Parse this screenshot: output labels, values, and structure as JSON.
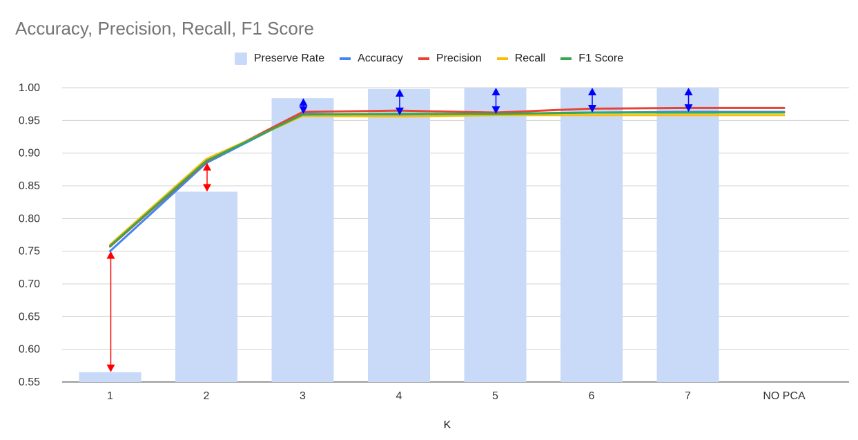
{
  "chart_data": {
    "type": "bar+line",
    "title": "Accuracy, Precision, Recall, F1 Score",
    "xlabel": "K",
    "ylabel": "",
    "categories": [
      "1",
      "2",
      "3",
      "4",
      "5",
      "6",
      "7",
      "NO PCA"
    ],
    "ylim": [
      0.55,
      1.0
    ],
    "yticks": [
      "0.55",
      "0.60",
      "0.65",
      "0.70",
      "0.75",
      "0.80",
      "0.85",
      "0.90",
      "0.95",
      "1.00"
    ],
    "grid": true,
    "legend_position": "top",
    "bars": {
      "name": "Preserve Rate",
      "color": "#c9daf8",
      "values": [
        0.565,
        0.841,
        0.984,
        0.998,
        1.0,
        1.0,
        1.0,
        null
      ]
    },
    "series": [
      {
        "name": "Accuracy",
        "color": "#4285f4",
        "values": [
          0.75,
          0.885,
          0.96,
          0.958,
          0.96,
          0.962,
          0.963,
          0.963
        ]
      },
      {
        "name": "Precision",
        "color": "#ea4335",
        "values": [
          0.757,
          0.887,
          0.963,
          0.965,
          0.962,
          0.968,
          0.969,
          0.969
        ]
      },
      {
        "name": "Recall",
        "color": "#fbbc04",
        "values": [
          0.76,
          0.891,
          0.957,
          0.956,
          0.958,
          0.958,
          0.958,
          0.958
        ]
      },
      {
        "name": "F1 Score",
        "color": "#34a853",
        "values": [
          0.758,
          0.888,
          0.959,
          0.96,
          0.96,
          0.962,
          0.962,
          0.962
        ]
      }
    ],
    "annotations": {
      "gap_arrows": [
        {
          "category": "1",
          "from": 0.75,
          "to": 0.565,
          "color": "#ff0000"
        },
        {
          "category": "2",
          "from": 0.885,
          "to": 0.841,
          "color": "#ff0000"
        },
        {
          "category": "3",
          "from": 0.984,
          "to": 0.96,
          "color": "#0000ff"
        },
        {
          "category": "4",
          "from": 0.998,
          "to": 0.958,
          "color": "#0000ff"
        },
        {
          "category": "5",
          "from": 1.0,
          "to": 0.96,
          "color": "#0000ff"
        },
        {
          "category": "6",
          "from": 1.0,
          "to": 0.962,
          "color": "#0000ff"
        },
        {
          "category": "7",
          "from": 1.0,
          "to": 0.963,
          "color": "#0000ff"
        }
      ]
    }
  }
}
